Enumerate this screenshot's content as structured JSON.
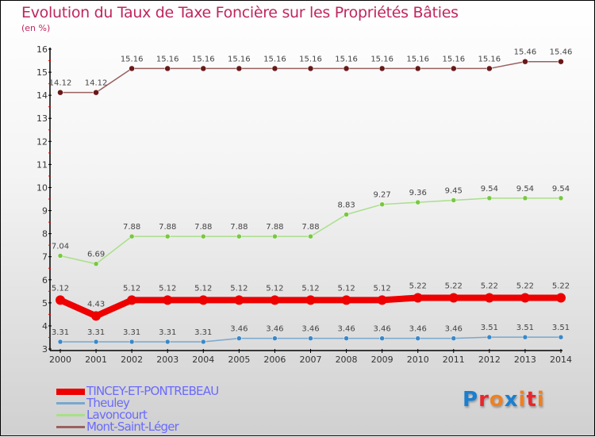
{
  "title": "Evolution du Taux de Taxe Foncière sur les Propriétés Bâties",
  "unit": "(en %)",
  "logo": {
    "letters": [
      "P",
      "r",
      "o",
      "x",
      "i",
      "t",
      "i"
    ],
    "colors": [
      "#1a7fd0",
      "#e8262b",
      "#f08020",
      "#1a7fd0",
      "#f08020",
      "#e8262b",
      "#f08020"
    ]
  },
  "chart_data": {
    "type": "line",
    "title": "Evolution du Taux de Taxe Foncière sur les Propriétés Bâties",
    "ylabel": "(en %)",
    "xlabel": "",
    "ylim": [
      3,
      16
    ],
    "yticks": [
      3,
      4,
      5,
      6,
      7,
      8,
      9,
      10,
      11,
      12,
      13,
      14,
      15,
      16
    ],
    "x": [
      "2000",
      "2001",
      "2002",
      "2003",
      "2004",
      "2005",
      "2006",
      "2007",
      "2008",
      "2009",
      "2010",
      "2011",
      "2012",
      "2013",
      "2014"
    ],
    "legend_position": "bottom-left",
    "series": [
      {
        "name": "TINCEY-ET-PONTREBEAU",
        "color": "#ee0000",
        "width": 8,
        "point": 6,
        "values": [
          5.12,
          4.43,
          5.12,
          5.12,
          5.12,
          5.12,
          5.12,
          5.12,
          5.12,
          5.12,
          5.22,
          5.22,
          5.22,
          5.22,
          5.22
        ]
      },
      {
        "name": "Theuley",
        "color": "#78a8d0",
        "point_color": "#3a88c8",
        "width": 1.5,
        "point": 3,
        "values": [
          3.31,
          3.31,
          3.31,
          3.31,
          3.31,
          3.46,
          3.46,
          3.46,
          3.46,
          3.46,
          3.46,
          3.46,
          3.51,
          3.51,
          3.51
        ]
      },
      {
        "name": "Lavoncourt",
        "color": "#a8e088",
        "point_color": "#78c840",
        "width": 1.5,
        "point": 3,
        "values": [
          7.04,
          6.69,
          7.88,
          7.88,
          7.88,
          7.88,
          7.88,
          7.88,
          8.83,
          9.27,
          9.36,
          9.45,
          9.54,
          9.54,
          9.54
        ]
      },
      {
        "name": "Mont-Saint-Léger",
        "color": "#9a6060",
        "point_color": "#6a1818",
        "width": 1.5,
        "point": 3.5,
        "values": [
          14.12,
          14.12,
          15.16,
          15.16,
          15.16,
          15.16,
          15.16,
          15.16,
          15.16,
          15.16,
          15.16,
          15.16,
          15.16,
          15.46,
          15.46
        ]
      }
    ]
  }
}
